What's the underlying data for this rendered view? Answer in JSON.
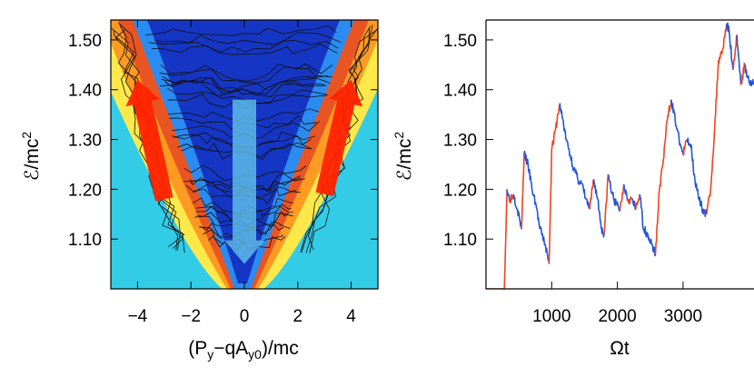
{
  "chart_data": [
    {
      "type": "heatmap",
      "panel": "left",
      "title": "",
      "xlabel": "(P_y - qA_y0)/mc",
      "ylabel": "E/mc^2",
      "xlim": [
        -5,
        5
      ],
      "ylim": [
        1.0,
        1.54
      ],
      "x_ticks": [
        -4,
        -2,
        0,
        2,
        4
      ],
      "x_tick_labels": [
        "−4",
        "−2",
        "0",
        "2",
        "4"
      ],
      "y_ticks": [
        1.1,
        1.2,
        1.3,
        1.4,
        1.5
      ],
      "y_tick_labels": [
        "1.10",
        "1.20",
        "1.30",
        "1.40",
        "1.50"
      ],
      "colormap": [
        "#33cce6",
        "#ffe94a",
        "#ff8c1a",
        "#e0301e",
        "#1f8cff",
        "#1233c0"
      ],
      "annotations": [
        {
          "kind": "arrow",
          "color": "#ff2200",
          "from": [
            -3.0,
            1.18
          ],
          "to": [
            -4.0,
            1.42
          ],
          "meaning": "energy gain"
        },
        {
          "kind": "arrow",
          "color": "#ff2200",
          "from": [
            3.0,
            1.19
          ],
          "to": [
            4.0,
            1.42
          ],
          "meaning": "energy gain"
        },
        {
          "kind": "arrow",
          "color": "#66ccee",
          "from": [
            0.0,
            1.38
          ],
          "to": [
            0.0,
            1.05
          ],
          "meaning": "energy loss"
        }
      ]
    },
    {
      "type": "line",
      "panel": "right",
      "title": "",
      "xlabel": "Ωt",
      "ylabel": "E/mc^2",
      "xlim": [
        0,
        4080
      ],
      "ylim": [
        1.0,
        1.54
      ],
      "x_ticks": [
        1000,
        2000,
        3000
      ],
      "x_tick_labels": [
        "1000",
        "2000",
        "3000"
      ],
      "y_ticks": [
        1.1,
        1.2,
        1.3,
        1.4,
        1.5
      ],
      "y_tick_labels": [
        "1.10",
        "1.20",
        "1.30",
        "1.40",
        "1.50"
      ],
      "series": [
        {
          "name": "energy",
          "color_gain": "#ee4422",
          "color_loss": "#2255dd",
          "x": [
            0,
            280,
            320,
            360,
            420,
            480,
            540,
            580,
            640,
            700,
            760,
            820,
            900,
            960,
            1000,
            1060,
            1120,
            1170,
            1220,
            1280,
            1340,
            1400,
            1460,
            1520,
            1580,
            1640,
            1700,
            1760,
            1800,
            1860,
            1920,
            1980,
            2040,
            2100,
            2160,
            2220,
            2280,
            2340,
            2400,
            2460,
            2520,
            2580,
            2640,
            2700,
            2760,
            2820,
            2880,
            2940,
            3000,
            3060,
            3120,
            3180,
            3240,
            3300,
            3360,
            3420,
            3480,
            3540,
            3600,
            3660,
            3700,
            3760,
            3820,
            3880,
            3940,
            4000,
            4080
          ],
          "y": [
            1.0,
            1.0,
            1.2,
            1.18,
            1.19,
            1.16,
            1.12,
            1.27,
            1.25,
            1.2,
            1.17,
            1.12,
            1.09,
            1.05,
            1.28,
            1.32,
            1.37,
            1.34,
            1.3,
            1.27,
            1.24,
            1.22,
            1.21,
            1.18,
            1.16,
            1.22,
            1.18,
            1.12,
            1.11,
            1.23,
            1.19,
            1.17,
            1.16,
            1.21,
            1.18,
            1.18,
            1.16,
            1.19,
            1.12,
            1.11,
            1.09,
            1.07,
            1.2,
            1.26,
            1.34,
            1.38,
            1.34,
            1.3,
            1.27,
            1.3,
            1.29,
            1.22,
            1.18,
            1.16,
            1.15,
            1.2,
            1.32,
            1.46,
            1.48,
            1.53,
            1.52,
            1.44,
            1.51,
            1.41,
            1.45,
            1.42,
            1.41
          ]
        }
      ]
    }
  ]
}
